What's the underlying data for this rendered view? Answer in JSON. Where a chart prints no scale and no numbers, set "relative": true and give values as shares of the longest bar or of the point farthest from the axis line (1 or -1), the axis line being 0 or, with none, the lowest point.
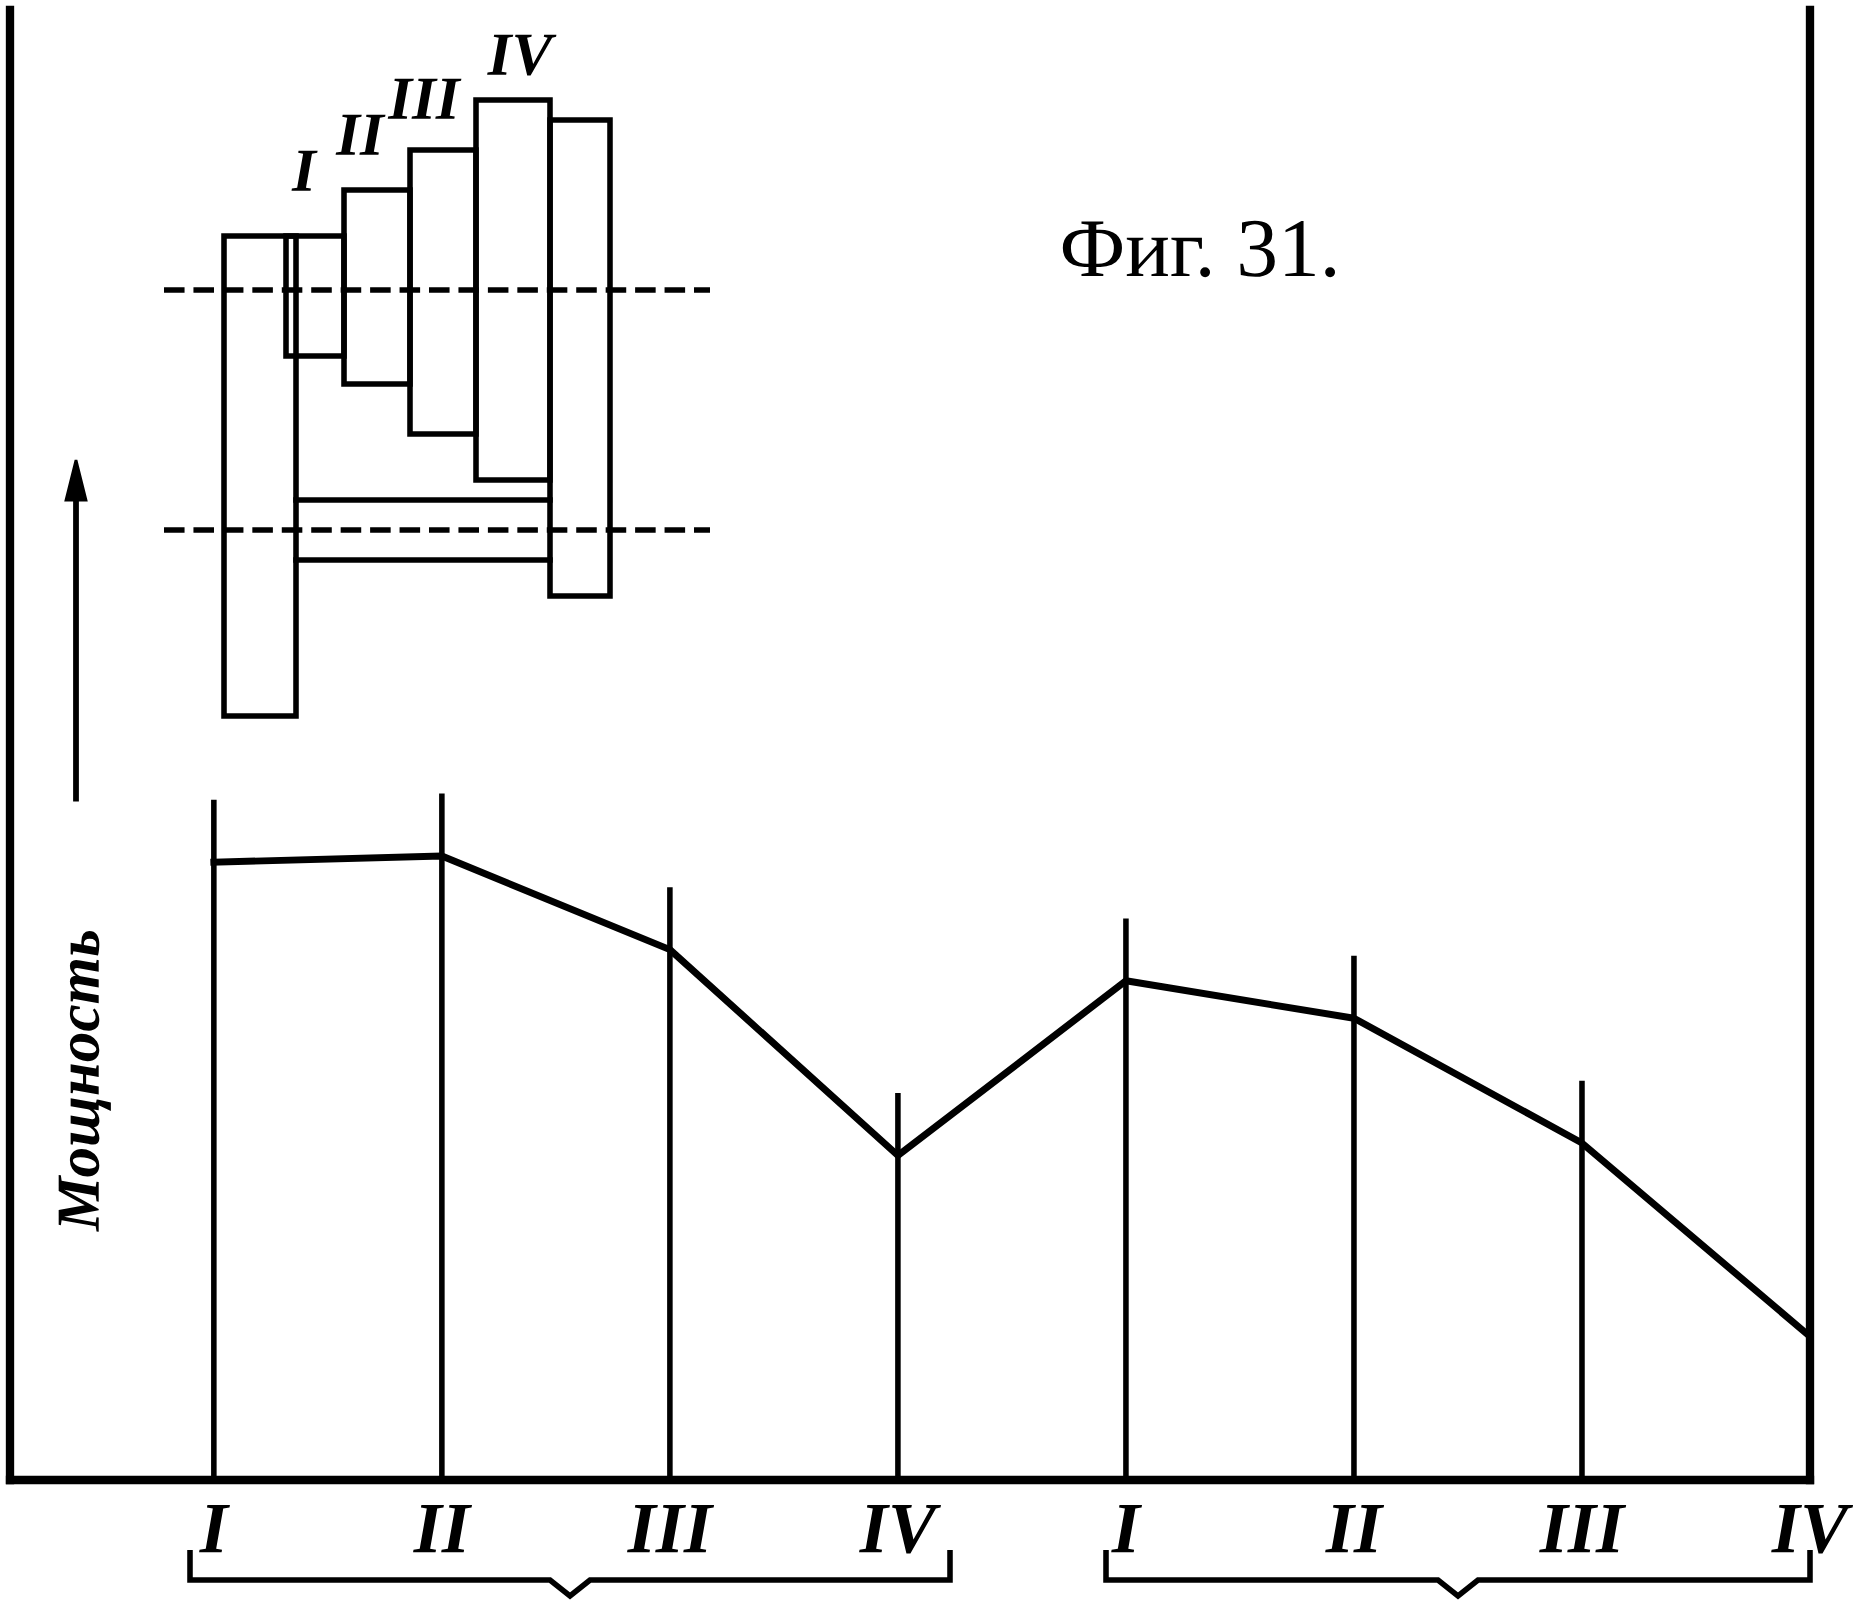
{
  "chart_data": {
    "type": "line",
    "title": "Фиг. 31.",
    "ylabel": "Мощность",
    "categories": [
      "I",
      "II",
      "III",
      "IV",
      "I",
      "II",
      "III",
      "IV"
    ],
    "values": [
      0.99,
      1,
      0.85,
      0.52,
      0.8,
      0.74,
      0.54,
      0.23
    ],
    "color": "#000000",
    "relative": true,
    "grid": "x",
    "marker": "none",
    "line_style": "solid",
    "annotations": [
      "I",
      "II",
      "III",
      "IV"
    ]
  }
}
